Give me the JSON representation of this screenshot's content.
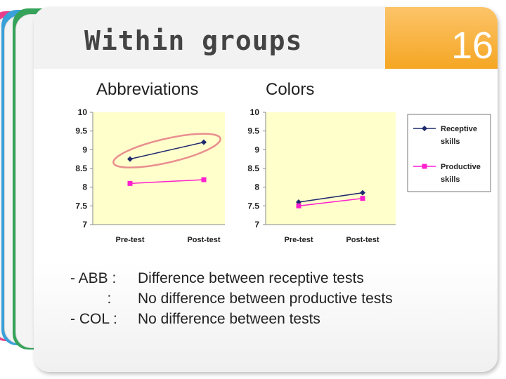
{
  "slide": {
    "title": "Within groups",
    "number": "16",
    "left_heading": "Abbreviations",
    "right_heading": "Colors",
    "bullets": [
      {
        "prefix": "- ABB :",
        "text": "Difference between receptive tests"
      },
      {
        "prefix": "         :",
        "text": "No difference between productive tests"
      },
      {
        "prefix": "- COL :",
        "text": "No difference between tests"
      }
    ]
  },
  "colors": {
    "receptive": "#1f2a6e",
    "productive": "#ff1fcf",
    "plot_bg": "#ffffcc",
    "highlight": "#e88f8f"
  },
  "chart_data": [
    {
      "type": "line",
      "categories": [
        "Pre-test",
        "Post-test"
      ],
      "series": [
        {
          "name": "Receptive skills",
          "values": [
            8.75,
            9.2
          ]
        },
        {
          "name": "Productive skills",
          "values": [
            8.1,
            8.2
          ]
        }
      ],
      "ylim": [
        7,
        10
      ],
      "yticks": [
        "10",
        "9.5",
        "9",
        "8.5",
        "8",
        "7.5",
        "7"
      ],
      "grid": false,
      "annotation": "ellipse around receptive series"
    },
    {
      "type": "line",
      "categories": [
        "Pre-test",
        "Post-test"
      ],
      "series": [
        {
          "name": "Receptive skills",
          "values": [
            7.6,
            7.85
          ]
        },
        {
          "name": "Productive skills",
          "values": [
            7.5,
            7.7
          ]
        }
      ],
      "ylim": [
        7,
        10
      ],
      "yticks": [
        "10",
        "9.5",
        "9",
        "8.5",
        "8",
        "7.5",
        "7"
      ],
      "grid": false
    }
  ],
  "legend": {
    "placement": "right",
    "entries": [
      {
        "line1": "Receptive",
        "line2": "skills"
      },
      {
        "line1": "Productive",
        "line2": "skills"
      }
    ]
  }
}
